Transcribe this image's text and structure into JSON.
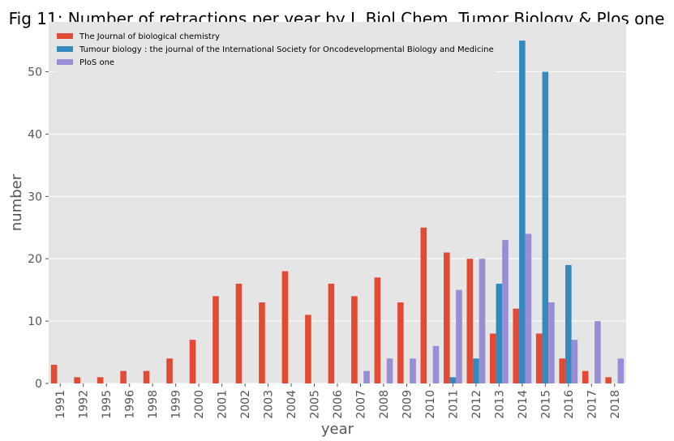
{
  "chart_data": {
    "type": "bar",
    "title": "Fig 11: Number of retractions per year by J. Biol Chem, Tumor Biology & Plos one",
    "xlabel": "year",
    "ylabel": "number",
    "ylim": [
      0,
      58
    ],
    "yticks": [
      0,
      10,
      20,
      30,
      40,
      50
    ],
    "grid": true,
    "legend_position": "top-left",
    "categories": [
      "1991",
      "1992",
      "1995",
      "1996",
      "1998",
      "1999",
      "2000",
      "2001",
      "2002",
      "2003",
      "2004",
      "2005",
      "2006",
      "2007",
      "2008",
      "2009",
      "2010",
      "2011",
      "2012",
      "2013",
      "2014",
      "2015",
      "2016",
      "2017",
      "2018"
    ],
    "series": [
      {
        "name": "The Journal of biological chemistry",
        "color": "#E24A33",
        "values": [
          3,
          1,
          1,
          2,
          2,
          4,
          7,
          14,
          16,
          13,
          18,
          11,
          16,
          14,
          17,
          13,
          25,
          21,
          20,
          8,
          12,
          8,
          4,
          2,
          1
        ]
      },
      {
        "name": "Tumour biology : the journal of the International Society for Oncodevelopmental Biology and Medicine",
        "color": "#348ABD",
        "values": [
          0,
          0,
          0,
          0,
          0,
          0,
          0,
          0,
          0,
          0,
          0,
          0,
          0,
          0,
          0,
          0,
          0,
          1,
          4,
          16,
          55,
          50,
          19,
          0,
          0
        ]
      },
      {
        "name": "PloS one",
        "color": "#988ED5",
        "values": [
          0,
          0,
          0,
          0,
          0,
          0,
          0,
          0,
          0,
          0,
          0,
          0,
          0,
          2,
          4,
          4,
          6,
          15,
          20,
          23,
          24,
          13,
          7,
          10,
          4
        ]
      }
    ]
  }
}
